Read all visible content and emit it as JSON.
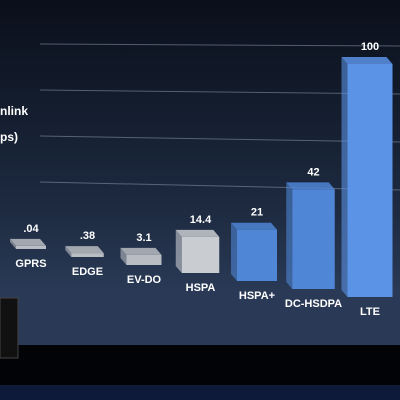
{
  "chart_data": {
    "type": "bar3d",
    "ylabel_lines": [
      "nlink",
      "ps)"
    ],
    "categories": [
      "GPRS",
      "EDGE",
      "EV-DO",
      "HSPA",
      "HSPA+",
      "DC-HSDPA",
      "LTE"
    ],
    "values": [
      0.04,
      0.38,
      3.1,
      14.4,
      21,
      42,
      100
    ],
    "value_labels": [
      ".04",
      ".38",
      "3.1",
      "14.4",
      "21",
      "42",
      "100"
    ],
    "colors": [
      "#b9bcc2",
      "#b9bcc2",
      "#b9bcc2",
      "#c9ccd1",
      "#4f86d6",
      "#4f86d6",
      "#5b93e6"
    ],
    "ylim": [
      0,
      100
    ]
  }
}
